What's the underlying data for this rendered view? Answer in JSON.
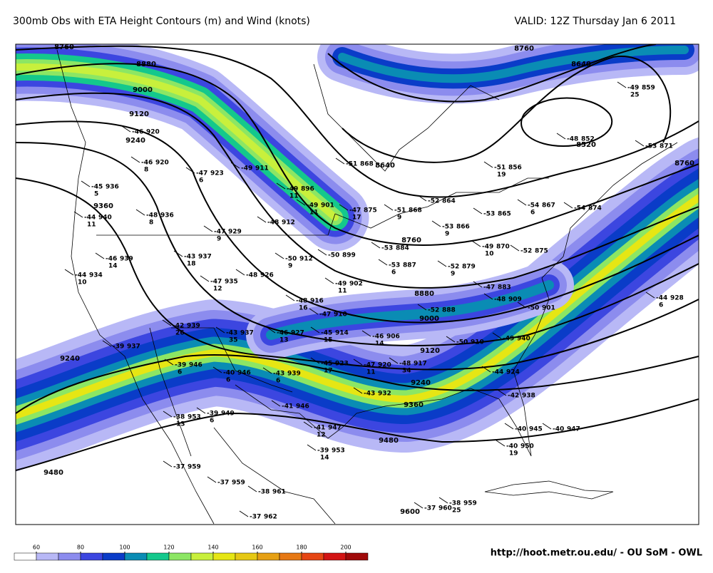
{
  "header": {
    "title": "300mb Obs with ETA Height Contours (m) and Wind (knots)",
    "valid": "VALID: 12Z Thursday Jan 6 2011"
  },
  "footer": {
    "url": "http://hoot.metr.ou.edu/ - OU SoM - OWL"
  },
  "colorbar": {
    "ticks": [
      60,
      80,
      100,
      120,
      140,
      160,
      180,
      200
    ],
    "colors": [
      "#ffffff",
      "#b8b8f6",
      "#8c8cee",
      "#3c46e0",
      "#0a3cc8",
      "#0a8cb4",
      "#14c88c",
      "#8ce664",
      "#c8f03c",
      "#e6e614",
      "#e6c814",
      "#e6a014",
      "#e67814",
      "#e64614",
      "#d21414",
      "#a00a0a"
    ]
  },
  "contour_labels": [
    "8760",
    "8880",
    "9000",
    "9120",
    "9240",
    "9360",
    "9240",
    "9480",
    "9480",
    "9600",
    "8640",
    "8640",
    "8520",
    "8760",
    "8760",
    "8760",
    "8880",
    "9000",
    "9120",
    "9240",
    "9360"
  ],
  "stations": [
    {
      "t": "-46",
      "h": "920"
    },
    {
      "t": "-46",
      "h": "920",
      "w": "8"
    },
    {
      "t": "-45",
      "h": "936",
      "w": "5"
    },
    {
      "t": "-47",
      "h": "923",
      "w": "6"
    },
    {
      "t": "-49",
      "h": "911"
    },
    {
      "t": "-49",
      "h": "896",
      "w": "11"
    },
    {
      "t": "-49",
      "h": "901",
      "w": "11"
    },
    {
      "t": "-48",
      "h": "912"
    },
    {
      "t": "-47",
      "h": "929",
      "w": "9"
    },
    {
      "t": "-44",
      "h": "940",
      "w": "11"
    },
    {
      "t": "-48",
      "h": "936",
      "w": "8"
    },
    {
      "t": "-46",
      "h": "939",
      "w": "14"
    },
    {
      "t": "-43",
      "h": "937",
      "w": "18"
    },
    {
      "t": "-44",
      "h": "934",
      "w": "10"
    },
    {
      "t": "-47",
      "h": "935",
      "w": "12"
    },
    {
      "t": "-48",
      "h": "926"
    },
    {
      "t": "-50",
      "h": "912",
      "w": "9"
    },
    {
      "t": "-50",
      "h": "899"
    },
    {
      "t": "-49",
      "h": "902",
      "w": "11"
    },
    {
      "t": "-48",
      "h": "916",
      "w": "16"
    },
    {
      "t": "-47",
      "h": "910"
    },
    {
      "t": "-42",
      "h": "939",
      "w": "26"
    },
    {
      "t": "-43",
      "h": "937",
      "w": "35"
    },
    {
      "t": "-46",
      "h": "927",
      "w": "13"
    },
    {
      "t": "-45",
      "h": "914",
      "w": "15"
    },
    {
      "t": "-46",
      "h": "906",
      "w": "14"
    },
    {
      "t": "-39",
      "h": "937"
    },
    {
      "t": "-39",
      "h": "946",
      "w": "6"
    },
    {
      "t": "-40",
      "h": "946",
      "w": "6"
    },
    {
      "t": "-43",
      "h": "939",
      "w": "6"
    },
    {
      "t": "-45",
      "h": "923",
      "w": "17"
    },
    {
      "t": "-47",
      "h": "920",
      "w": "11"
    },
    {
      "t": "-48",
      "h": "917",
      "w": "34"
    },
    {
      "t": "-38",
      "h": "953",
      "w": "13"
    },
    {
      "t": "-39",
      "h": "949",
      "w": "6"
    },
    {
      "t": "-41",
      "h": "946"
    },
    {
      "t": "-43",
      "h": "932"
    },
    {
      "t": "-41",
      "h": "947",
      "w": "12"
    },
    {
      "t": "-39",
      "h": "953",
      "w": "14"
    },
    {
      "t": "-37",
      "h": "959"
    },
    {
      "t": "-37",
      "h": "959"
    },
    {
      "t": "-38",
      "h": "961"
    },
    {
      "t": "-37",
      "h": "962"
    },
    {
      "t": "-37",
      "h": "960"
    },
    {
      "t": "-38",
      "h": "959",
      "w": "25"
    },
    {
      "t": "-51",
      "h": "868"
    },
    {
      "t": "-47",
      "h": "875",
      "w": "17"
    },
    {
      "t": "-51",
      "h": "868",
      "w": "9"
    },
    {
      "t": "-53",
      "h": "884"
    },
    {
      "t": "-53",
      "h": "887",
      "w": "6"
    },
    {
      "t": "-52",
      "h": "864"
    },
    {
      "t": "-53",
      "h": "866",
      "w": "9"
    },
    {
      "t": "-53",
      "h": "865"
    },
    {
      "t": "-52",
      "h": "888"
    },
    {
      "t": "-49",
      "h": "870",
      "w": "10"
    },
    {
      "t": "-52",
      "h": "879",
      "w": "9"
    },
    {
      "t": "-54",
      "h": "867",
      "w": "6"
    },
    {
      "t": "-54",
      "h": "874"
    },
    {
      "t": "-51",
      "h": "856",
      "w": "19"
    },
    {
      "t": "-53",
      "h": "871"
    },
    {
      "t": "-49",
      "h": "859",
      "w": "25"
    },
    {
      "t": "-48",
      "h": "852"
    },
    {
      "t": "-52",
      "h": "875"
    },
    {
      "t": "-47",
      "h": "883"
    },
    {
      "t": "-48",
      "h": "909"
    },
    {
      "t": "-50",
      "h": "901"
    },
    {
      "t": "-49",
      "h": "940"
    },
    {
      "t": "-44",
      "h": "928",
      "w": "6"
    },
    {
      "t": "-42",
      "h": "938"
    },
    {
      "t": "-44",
      "h": "924"
    },
    {
      "t": "-40",
      "h": "945"
    },
    {
      "t": "-40",
      "h": "950",
      "w": "19"
    },
    {
      "t": "-40",
      "h": "947"
    },
    {
      "t": "-50",
      "h": "910"
    }
  ]
}
